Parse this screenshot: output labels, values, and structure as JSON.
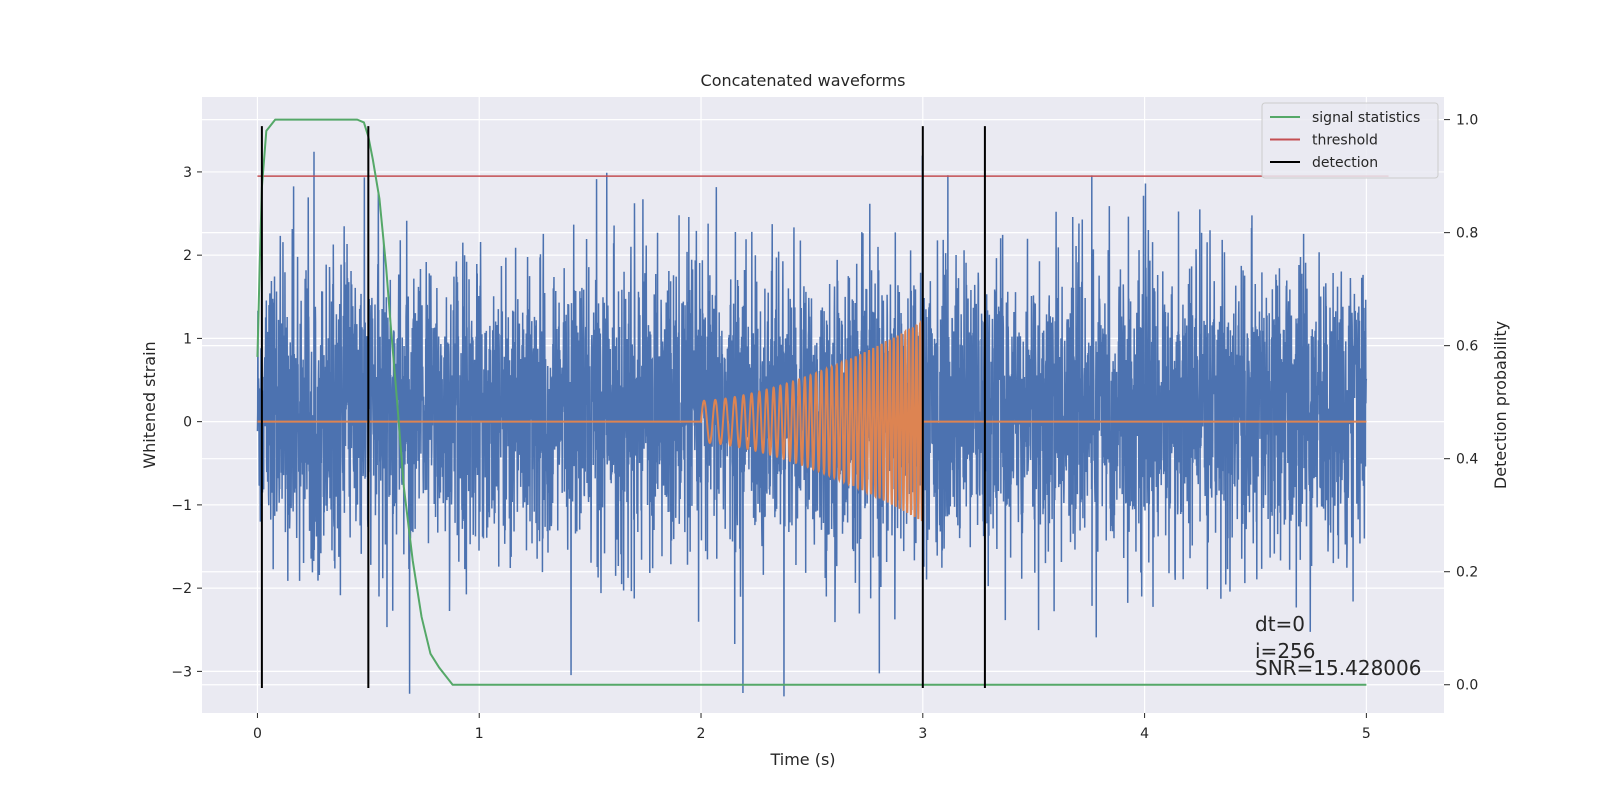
{
  "chart_data": {
    "type": "line",
    "title": "Concatenated waveforms",
    "xlabel": "Time (s)",
    "ylabel": "Whitened strain",
    "ylabel_right": "Detection probability",
    "xlim": [
      -0.25,
      5.35
    ],
    "ylim": [
      -3.5,
      3.9
    ],
    "ylim_right": [
      -0.05,
      1.04
    ],
    "x_ticks": [
      0,
      1,
      2,
      3,
      4,
      5
    ],
    "x_tick_labels": [
      "0",
      "1",
      "2",
      "3",
      "4",
      "5"
    ],
    "y_ticks": [
      -3,
      -2,
      -1,
      0,
      1,
      2,
      3
    ],
    "y_tick_labels": [
      "−3",
      "−2",
      "−1",
      "0",
      "1",
      "2",
      "3"
    ],
    "y_right_ticks": [
      0.0,
      0.2,
      0.4,
      0.6,
      0.8,
      1.0
    ],
    "y_right_tick_labels": [
      "0.0",
      "0.2",
      "0.4",
      "0.6",
      "0.8",
      "1.0"
    ],
    "grid": true,
    "legend_position": "top-right",
    "colors": {
      "strain": "#4c72b0",
      "template": "#dd8452",
      "signal_statistics": "#55a868",
      "threshold": "#c44e52",
      "detection": "#000000",
      "background": "#eaeaf2",
      "grid": "#ffffff"
    },
    "legend": [
      {
        "name": "signal statistics",
        "color": "#55a868"
      },
      {
        "name": "threshold",
        "color": "#c44e52"
      },
      {
        "name": "detection",
        "color": "#000000"
      }
    ],
    "strain_noise": {
      "x_range": [
        0,
        5
      ],
      "core_band": [
        -0.5,
        0.8
      ],
      "typical_extremes": [
        -3.1,
        3.5
      ]
    },
    "template_chirp": {
      "x_range": [
        2.0,
        3.0
      ],
      "amplitude_start": 0.25,
      "amplitude_end": 1.2,
      "zero_elsewhere": true
    },
    "signal_statistics": {
      "axis": "right",
      "x": [
        0.0,
        0.01,
        0.02,
        0.04,
        0.08,
        0.15,
        0.3,
        0.45,
        0.48,
        0.5,
        0.52,
        0.55,
        0.58,
        0.6,
        0.63,
        0.66,
        0.7,
        0.74,
        0.78,
        0.82,
        0.85,
        0.88,
        0.92,
        0.96,
        1.0,
        1.04,
        1.07,
        1.1,
        1.13,
        1.16,
        1.19,
        1.22,
        1.26,
        1.3,
        1.34,
        1.38,
        1.42,
        1.46,
        1.5,
        1.55,
        1.6,
        1.62,
        1.65,
        1.7,
        1.8,
        2.0,
        2.3,
        2.6,
        2.7,
        2.76,
        2.8,
        2.84,
        2.88,
        2.9,
        2.92,
        2.94,
        2.96,
        2.98,
        3.0,
        3.02,
        3.05,
        3.1,
        3.2,
        3.25,
        3.27,
        3.29,
        3.31,
        3.33,
        3.36,
        3.4,
        3.44,
        3.48,
        3.52,
        3.56,
        3.6,
        3.8,
        4.0,
        4.1,
        4.2,
        4.3,
        4.5,
        4.8,
        5.0
      ],
      "y": [
        0.58,
        0.74,
        0.88,
        0.98,
        1.0,
        1.0,
        1.0,
        1.0,
        0.995,
        0.97,
        0.93,
        0.86,
        0.74,
        0.64,
        0.5,
        0.35,
        0.22,
        0.12,
        0.055,
        0.03,
        0.015,
        0.0,
        0.0,
        0.0,
        0.0,
        0.0,
        0.0,
        0.0,
        0.0,
        0.0,
        0.0,
        0.0,
        0.0,
        0.0,
        0.0,
        0.0,
        0.0,
        0.0,
        0.0,
        0.0,
        0.0,
        0.0,
        0.0,
        0.0,
        0.0,
        0.0,
        0.0,
        0.0,
        0.0,
        0.0,
        0.0,
        0.0,
        0.0,
        0.0,
        0.0,
        0.0,
        0.0,
        0.0,
        0.0,
        0.0,
        0.0,
        0.0,
        0.0,
        0.0,
        0.0,
        0.0,
        0.0,
        0.0,
        0.0,
        0.0,
        0.0,
        0.0,
        0.0,
        0.0,
        0.0,
        0.0,
        0.0,
        0.0,
        0.0,
        0.0,
        0.0,
        0.0,
        0.0
      ]
    },
    "threshold": {
      "axis": "right",
      "value": 0.9,
      "x_range": [
        0.0,
        5.1
      ]
    },
    "detections": [
      0.02,
      0.5,
      3.0,
      3.28
    ],
    "detection_y_range": [
      -3.2,
      3.55
    ],
    "annotations": [
      "dt=0",
      "i=256",
      "SNR=15.428006"
    ]
  }
}
